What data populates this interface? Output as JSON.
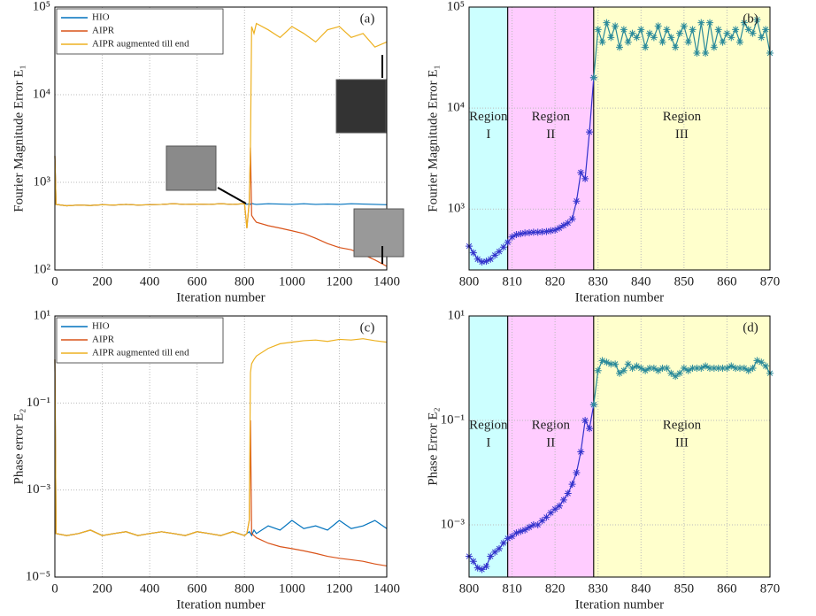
{
  "chart_data": [
    {
      "type": "line",
      "panel_label": "(a)",
      "xlabel": "Iteration number",
      "ylabel": "Fourier Magnitude Error E₁",
      "xlim": [
        0,
        1400
      ],
      "xticks": [
        0,
        200,
        400,
        600,
        800,
        1000,
        1200,
        1400
      ],
      "ylim": [
        100,
        100000
      ],
      "ylog": true,
      "grid": true,
      "legend": "upper left",
      "yticks": [
        {
          "value": 100,
          "label": "10²"
        },
        {
          "value": 1000,
          "label": "10³"
        },
        {
          "value": 10000,
          "label": "10⁴"
        },
        {
          "value": 100000,
          "label": "10⁵"
        }
      ],
      "x": [
        0,
        5,
        50,
        100,
        150,
        200,
        250,
        300,
        350,
        400,
        450,
        500,
        550,
        600,
        650,
        700,
        750,
        800,
        810,
        820,
        825,
        830,
        840,
        850,
        900,
        950,
        1000,
        1050,
        1100,
        1150,
        1200,
        1250,
        1300,
        1350,
        1400
      ],
      "series": [
        {
          "name": "HIO",
          "color": "#0072bd",
          "values": [
            2000,
            560,
            540,
            550,
            545,
            555,
            550,
            560,
            550,
            555,
            560,
            570,
            560,
            565,
            560,
            570,
            560,
            570,
            560,
            570,
            560,
            575,
            565,
            560,
            570,
            565,
            560,
            570,
            560,
            565,
            560,
            570,
            565,
            560,
            555
          ]
        },
        {
          "name": "AIPR",
          "color": "#d95319",
          "values": [
            2000,
            560,
            540,
            550,
            545,
            555,
            550,
            560,
            550,
            555,
            560,
            570,
            560,
            565,
            560,
            570,
            560,
            570,
            300,
            600,
            2500,
            420,
            380,
            350,
            320,
            300,
            280,
            260,
            230,
            200,
            180,
            170,
            150,
            130,
            110
          ]
        },
        {
          "name": "AIPR augmented till end",
          "color": "#edb120",
          "values": [
            2000,
            560,
            540,
            550,
            545,
            555,
            550,
            560,
            550,
            555,
            560,
            570,
            560,
            565,
            560,
            570,
            560,
            570,
            300,
            600,
            2500,
            60000,
            50000,
            65000,
            55000,
            45000,
            60000,
            50000,
            40000,
            55000,
            60000,
            45000,
            50000,
            35000,
            40000
          ]
        }
      ]
    },
    {
      "type": "line",
      "panel_label": "(b)",
      "xlabel": "Iteration number",
      "ylabel": "Fourier Magnitude Error E₁",
      "xlim": [
        800,
        870
      ],
      "xticks": [
        800,
        810,
        820,
        830,
        840,
        850,
        860,
        870
      ],
      "ylim": [
        250,
        100000
      ],
      "ylog": true,
      "grid": true,
      "markers": true,
      "yticks": [
        {
          "value": 1000,
          "label": "10³"
        },
        {
          "value": 10000,
          "label": "10⁴"
        },
        {
          "value": 100000,
          "label": "10⁵"
        }
      ],
      "regions": [
        {
          "from": 800,
          "to": 809,
          "color": "#ccffff",
          "label": [
            "Region",
            "I"
          ]
        },
        {
          "from": 809,
          "to": 829,
          "color": "#ffccff",
          "label": [
            "Region",
            "II"
          ]
        },
        {
          "from": 829,
          "to": 870,
          "color": "#ffffcc",
          "label": [
            "Region",
            "III"
          ]
        }
      ],
      "series": [
        {
          "color": "#3333cc",
          "x": [
            800,
            801,
            802,
            803,
            804,
            805,
            806,
            807,
            808,
            809,
            810,
            811,
            812,
            813,
            814,
            815,
            816,
            817,
            818,
            819,
            820,
            821,
            822,
            823,
            824,
            825,
            826,
            827,
            828,
            829
          ],
          "values": [
            430,
            370,
            320,
            300,
            305,
            320,
            350,
            380,
            420,
            470,
            530,
            560,
            570,
            580,
            585,
            590,
            590,
            595,
            600,
            610,
            620,
            650,
            690,
            730,
            800,
            1200,
            2300,
            2000,
            5800,
            20000
          ]
        },
        {
          "color": "#2a8a9a",
          "x": [
            829,
            830,
            831,
            832,
            833,
            834,
            835,
            836,
            837,
            838,
            839,
            840,
            841,
            842,
            843,
            844,
            845,
            846,
            847,
            848,
            849,
            850,
            851,
            852,
            853,
            854,
            855,
            856,
            857,
            858,
            859,
            860,
            861,
            862,
            863,
            864,
            865,
            866,
            867,
            868,
            869,
            870
          ],
          "values": [
            20000,
            60000,
            45000,
            70000,
            50000,
            65000,
            40000,
            60000,
            45000,
            55000,
            50000,
            60000,
            40000,
            55000,
            50000,
            65000,
            45000,
            60000,
            50000,
            40000,
            55000,
            65000,
            45000,
            60000,
            35000,
            70000,
            35000,
            70000,
            40000,
            60000,
            45000,
            55000,
            50000,
            60000,
            45000,
            70000,
            60000,
            55000,
            75000,
            50000,
            60000,
            35000
          ]
        }
      ]
    },
    {
      "type": "line",
      "panel_label": "(c)",
      "xlabel": "Iteration number",
      "ylabel": "Phase error E₂",
      "xlim": [
        0,
        1400
      ],
      "xticks": [
        0,
        200,
        400,
        600,
        800,
        1000,
        1200,
        1400
      ],
      "ylim": [
        1e-05,
        10
      ],
      "ylog": true,
      "grid": true,
      "legend": "upper left",
      "yticks": [
        {
          "value": 1e-05,
          "label": "10⁻⁵"
        },
        {
          "value": 0.001,
          "label": "10⁻³"
        },
        {
          "value": 0.1,
          "label": "10⁻¹"
        },
        {
          "value": 10,
          "label": "10¹"
        }
      ],
      "x": [
        0,
        5,
        50,
        100,
        150,
        200,
        250,
        300,
        350,
        400,
        450,
        500,
        550,
        600,
        650,
        700,
        750,
        800,
        810,
        820,
        825,
        830,
        840,
        850,
        900,
        950,
        1000,
        1050,
        1100,
        1150,
        1200,
        1250,
        1300,
        1350,
        1400
      ],
      "series": [
        {
          "name": "HIO",
          "color": "#0072bd",
          "values": [
            1,
            0.0001,
            9e-05,
            0.0001,
            0.00012,
            9e-05,
            0.0001,
            0.00011,
            9e-05,
            0.0001,
            0.00011,
            0.0001,
            9e-05,
            0.00011,
            0.0001,
            9e-05,
            0.00011,
            9e-05,
            0.0001,
            0.00011,
            0.0001,
            9e-05,
            0.00012,
            0.0001,
            0.00015,
            0.00012,
            0.0002,
            0.00013,
            0.00015,
            0.00012,
            0.0002,
            0.00013,
            0.00015,
            0.0002,
            0.00013
          ]
        },
        {
          "name": "AIPR",
          "color": "#d95319",
          "values": [
            1,
            0.0001,
            9e-05,
            0.0001,
            0.00012,
            9e-05,
            0.0001,
            0.00011,
            9e-05,
            0.0001,
            0.00011,
            0.0001,
            9e-05,
            0.00011,
            0.0001,
            9e-05,
            0.00011,
            9e-05,
            0.0001,
            0.0002,
            0.04,
            0.0001,
            9e-05,
            8e-05,
            6e-05,
            5e-05,
            4.5e-05,
            4e-05,
            3.5e-05,
            3e-05,
            2.7e-05,
            2.5e-05,
            2.3e-05,
            2e-05,
            1.8e-05
          ]
        },
        {
          "name": "AIPR augmented till end",
          "color": "#edb120",
          "values": [
            1,
            0.0001,
            9e-05,
            0.0001,
            0.00012,
            9e-05,
            0.0001,
            0.00011,
            9e-05,
            0.0001,
            0.00011,
            0.0001,
            9e-05,
            0.00011,
            0.0001,
            9e-05,
            0.00011,
            9e-05,
            0.0001,
            0.0002,
            0.5,
            0.8,
            1,
            1.2,
            1.8,
            2.3,
            2.5,
            2.7,
            2.8,
            2.6,
            2.9,
            2.8,
            3,
            2.7,
            2.5
          ]
        }
      ]
    },
    {
      "type": "line",
      "panel_label": "(d)",
      "xlabel": "Iteration number",
      "ylabel": "Phase Error E₂",
      "xlim": [
        800,
        870
      ],
      "xticks": [
        800,
        810,
        820,
        830,
        840,
        850,
        860,
        870
      ],
      "ylim": [
        0.0001,
        10
      ],
      "ylog": true,
      "grid": true,
      "markers": true,
      "yticks": [
        {
          "value": 0.001,
          "label": "10⁻³"
        },
        {
          "value": 0.1,
          "label": "10⁻¹"
        },
        {
          "value": 10,
          "label": "10¹"
        }
      ],
      "regions": [
        {
          "from": 800,
          "to": 809,
          "color": "#ccffff",
          "label": [
            "Region",
            "I"
          ]
        },
        {
          "from": 809,
          "to": 829,
          "color": "#ffccff",
          "label": [
            "Region",
            "II"
          ]
        },
        {
          "from": 829,
          "to": 870,
          "color": "#ffffcc",
          "label": [
            "Region",
            "III"
          ]
        }
      ],
      "series": [
        {
          "color": "#3333cc",
          "x": [
            800,
            801,
            802,
            803,
            804,
            805,
            806,
            807,
            808,
            809,
            810,
            811,
            812,
            813,
            814,
            815,
            816,
            817,
            818,
            819,
            820,
            821,
            822,
            823,
            824,
            825,
            826,
            827,
            828,
            829
          ],
          "values": [
            0.00025,
            0.0002,
            0.00015,
            0.00014,
            0.00016,
            0.00025,
            0.0003,
            0.00035,
            0.00045,
            0.00055,
            0.0006,
            0.0007,
            0.00075,
            0.0008,
            0.0009,
            0.001,
            0.001,
            0.0012,
            0.0014,
            0.0017,
            0.002,
            0.0023,
            0.003,
            0.004,
            0.006,
            0.01,
            0.025,
            0.1,
            0.07,
            0.2
          ]
        },
        {
          "color": "#2a8a9a",
          "x": [
            829,
            830,
            831,
            832,
            833,
            834,
            835,
            836,
            837,
            838,
            839,
            840,
            841,
            842,
            843,
            844,
            845,
            846,
            847,
            848,
            849,
            850,
            851,
            852,
            853,
            854,
            855,
            856,
            857,
            858,
            859,
            860,
            861,
            862,
            863,
            864,
            865,
            866,
            867,
            868,
            869,
            870
          ],
          "values": [
            0.2,
            0.9,
            1.4,
            1.3,
            1.2,
            1.2,
            0.8,
            0.9,
            1.2,
            1.0,
            1.1,
            1.0,
            0.9,
            1.0,
            1.0,
            0.9,
            1.0,
            1.0,
            0.8,
            0.7,
            0.8,
            1.0,
            0.9,
            1.0,
            1.0,
            1.0,
            1.1,
            1.0,
            1.0,
            1.0,
            1.0,
            1.0,
            1.1,
            1.0,
            1.0,
            1.0,
            0.9,
            1.0,
            1.4,
            1.3,
            1.1,
            0.8
          ]
        }
      ]
    }
  ]
}
